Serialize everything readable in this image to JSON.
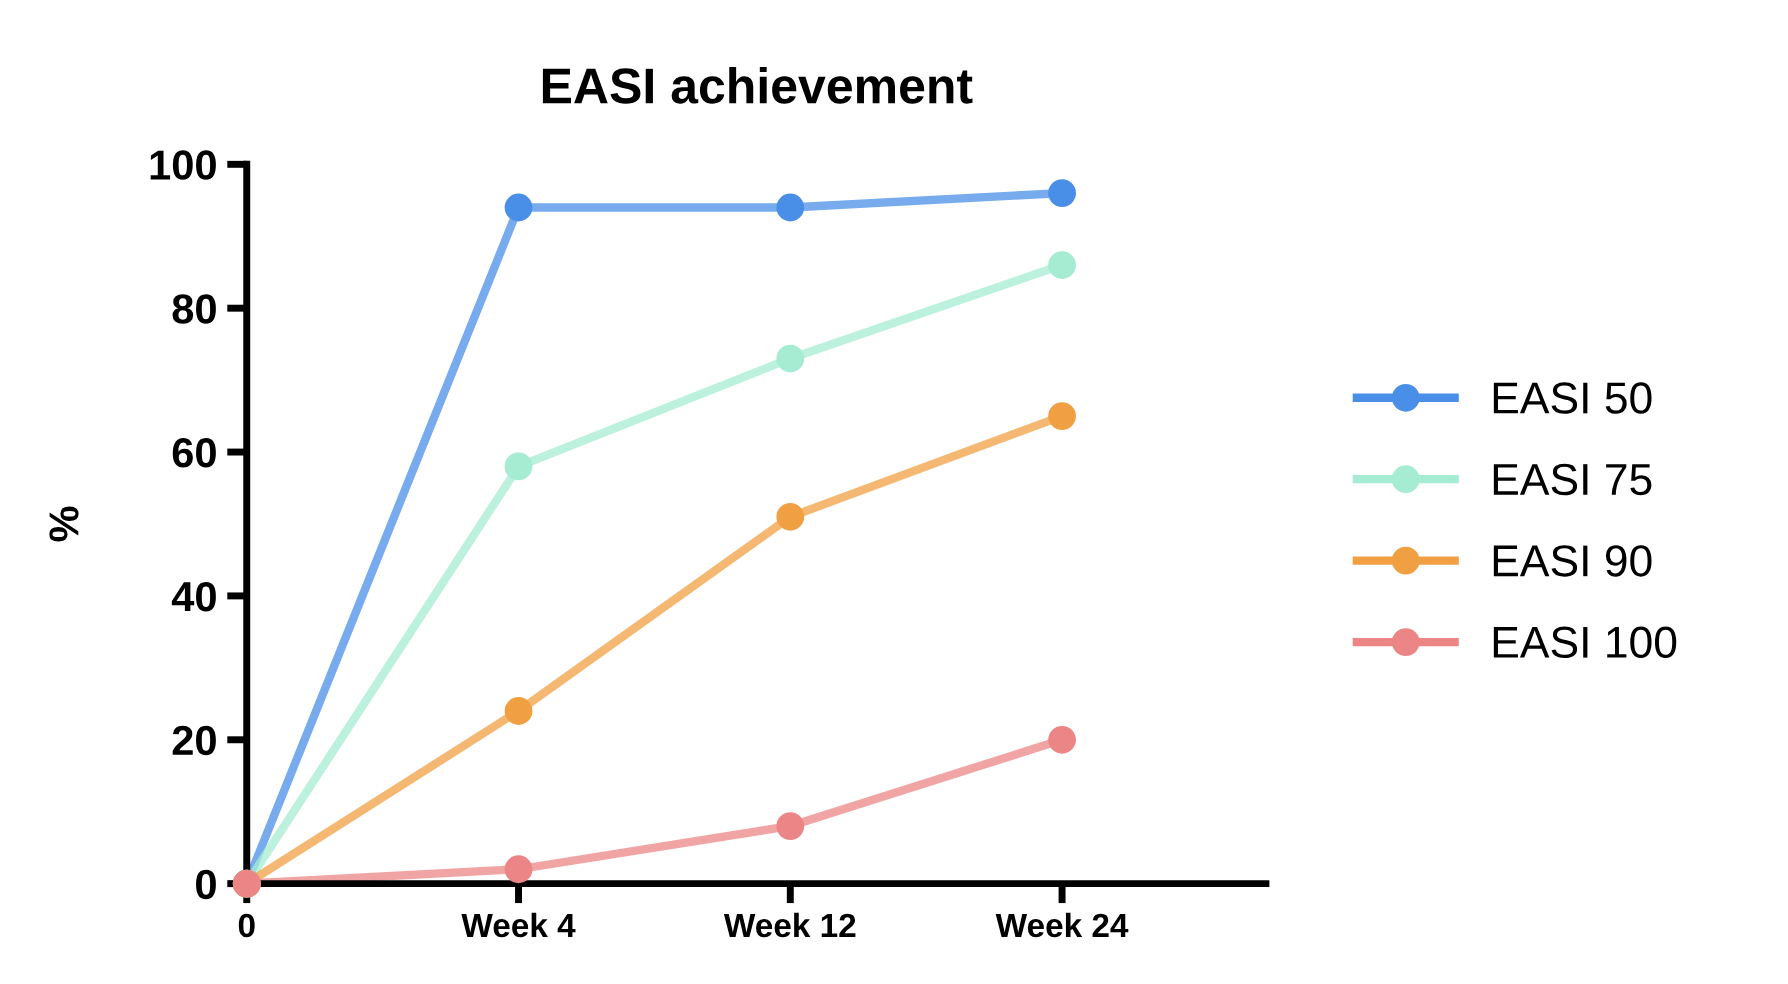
{
  "chart_data": {
    "type": "line",
    "title": "EASI achievement",
    "ylabel": "%",
    "categories": [
      "0",
      "Week 4",
      "Week 12",
      "Week 24"
    ],
    "series": [
      {
        "name": "EASI 50",
        "color": "#4a8fe7",
        "values": [
          0,
          94,
          94,
          96
        ]
      },
      {
        "name": "EASI 75",
        "color": "#a6ecd2",
        "values": [
          0,
          58,
          73,
          86
        ]
      },
      {
        "name": "EASI 90",
        "color": "#f0a043",
        "values": [
          0,
          24,
          51,
          65
        ]
      },
      {
        "name": "EASI 100",
        "color": "#ec8585",
        "values": [
          0,
          2,
          8,
          20
        ]
      }
    ],
    "ylim": [
      0,
      100
    ],
    "yticks": [
      0,
      20,
      40,
      60,
      80,
      100
    ],
    "grid": false,
    "legend": "right",
    "marker": "circle",
    "line_style": "solid"
  }
}
